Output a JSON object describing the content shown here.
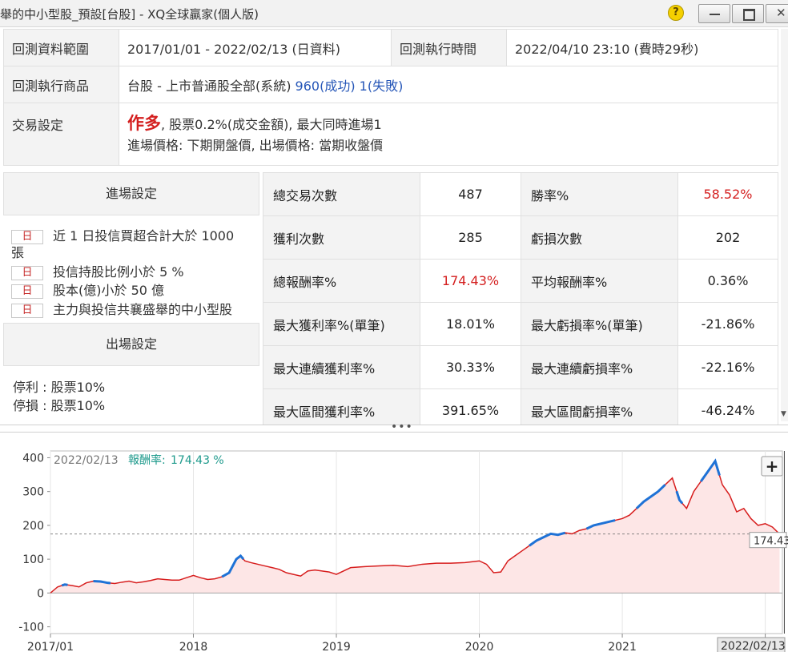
{
  "window": {
    "title": "舉的中小型股_預設[台股] - XQ全球贏家(個人版)"
  },
  "info": {
    "range_label": "回測資料範圍",
    "range_value": "2017/01/01 - 2022/02/13 (日資料)",
    "exec_time_label": "回測執行時間",
    "exec_time_value": "2022/04/10 23:10 (費時29秒)",
    "product_label": "回測執行商品",
    "product_value": "台股 - 上市普通股全部(系統)",
    "product_success": "960(成功)",
    "product_fail": "1(失敗)",
    "trade_label": "交易設定",
    "trade_direction": "作多",
    "trade_detail": ", 股票0.2%(成交金額), 最大同時進場1",
    "trade_price": "進場價格: 下期開盤價, 出場價格: 當期收盤價"
  },
  "entry": {
    "header": "進場設定",
    "conditions": [
      {
        "badge": "日",
        "text": "近 1 日投信買超合計大於 1000"
      },
      {
        "badge": "",
        "text": "張"
      },
      {
        "badge": "日",
        "text": "投信持股比例小於 5 %"
      },
      {
        "badge": "日",
        "text": "股本(億)小於 50 億"
      },
      {
        "badge": "日",
        "text": "主力與投信共襄盛舉的中小型股"
      }
    ]
  },
  "exit": {
    "header": "出場設定",
    "items": [
      "停利 : 股票10%",
      "停損 : 股票10%"
    ]
  },
  "stats": [
    {
      "l1": "總交易次數",
      "v1": "487",
      "l2": "勝率%",
      "v2": "58.52%",
      "v2_color": "#d41f1f"
    },
    {
      "l1": "獲利次數",
      "v1": "285",
      "l2": "虧損次數",
      "v2": "202"
    },
    {
      "l1": "總報酬率%",
      "v1": "174.43%",
      "v1_color": "#d41f1f",
      "l2": "平均報酬率%",
      "v2": "0.36%"
    },
    {
      "l1": "最大獲利率%(單筆)",
      "v1": "18.01%",
      "l2": "最大虧損率%(單筆)",
      "v2": "-21.86%"
    },
    {
      "l1": "最大連續獲利率%",
      "v1": "30.33%",
      "l2": "最大連續虧損率%",
      "v2": "-22.16%"
    },
    {
      "l1": "最大區間獲利率%",
      "v1": "391.65%",
      "l2": "最大區間虧損率%",
      "v2": "-46.24%"
    }
  ],
  "chart_data": {
    "type": "line",
    "header_date": "2022/02/13",
    "header_label": "報酬率:",
    "header_value": "174.43 %",
    "current_value": 174.43,
    "current_value_label": "174.43",
    "cursor_date_label": "2022/02/13",
    "ylim": [
      -120,
      420
    ],
    "yticks": [
      400,
      300,
      200,
      100,
      0,
      -100
    ],
    "xticks": [
      {
        "label": "2017/01",
        "x": 2017.0
      },
      {
        "label": "2018",
        "x": 2018.0
      },
      {
        "label": "2019",
        "x": 2019.0
      },
      {
        "label": "2020",
        "x": 2020.0
      },
      {
        "label": "2021",
        "x": 2021.0
      },
      {
        "label": "2022",
        "x": 2022.0
      }
    ],
    "xlim": [
      2017.0,
      2022.12
    ],
    "colors": {
      "line": "#d71e1e",
      "highlight": "#1f72d6",
      "fill": "#fde6e6",
      "header_value": "#1e9a8c"
    },
    "series": {
      "x": [
        2017.0,
        2017.05,
        2017.1,
        2017.15,
        2017.2,
        2017.25,
        2017.3,
        2017.35,
        2017.4,
        2017.45,
        2017.5,
        2017.55,
        2017.6,
        2017.65,
        2017.7,
        2017.75,
        2017.8,
        2017.85,
        2017.9,
        2017.95,
        2018.0,
        2018.05,
        2018.1,
        2018.15,
        2018.2,
        2018.25,
        2018.3,
        2018.33,
        2018.36,
        2018.4,
        2018.45,
        2018.5,
        2018.55,
        2018.6,
        2018.65,
        2018.7,
        2018.75,
        2018.8,
        2018.85,
        2018.9,
        2018.95,
        2019.0,
        2019.1,
        2019.2,
        2019.3,
        2019.4,
        2019.5,
        2019.6,
        2019.7,
        2019.8,
        2019.9,
        2020.0,
        2020.05,
        2020.1,
        2020.15,
        2020.2,
        2020.25,
        2020.3,
        2020.35,
        2020.4,
        2020.45,
        2020.5,
        2020.55,
        2020.6,
        2020.65,
        2020.7,
        2020.75,
        2020.8,
        2020.85,
        2020.9,
        2020.95,
        2021.0,
        2021.05,
        2021.1,
        2021.15,
        2021.2,
        2021.25,
        2021.3,
        2021.35,
        2021.4,
        2021.45,
        2021.5,
        2021.55,
        2021.6,
        2021.65,
        2021.7,
        2021.75,
        2021.8,
        2021.85,
        2021.9,
        2021.95,
        2022.0,
        2022.05,
        2022.1
      ],
      "y": [
        0,
        18,
        25,
        22,
        18,
        30,
        35,
        34,
        30,
        28,
        32,
        35,
        30,
        33,
        37,
        42,
        40,
        38,
        38,
        45,
        52,
        45,
        40,
        42,
        48,
        60,
        100,
        110,
        95,
        90,
        85,
        80,
        75,
        70,
        60,
        55,
        50,
        65,
        68,
        65,
        62,
        55,
        75,
        78,
        80,
        82,
        78,
        85,
        88,
        88,
        90,
        95,
        85,
        60,
        62,
        95,
        110,
        125,
        140,
        155,
        165,
        175,
        172,
        178,
        175,
        185,
        190,
        200,
        205,
        210,
        215,
        220,
        230,
        250,
        270,
        285,
        300,
        320,
        340,
        275,
        250,
        300,
        330,
        360,
        390,
        320,
        290,
        240,
        250,
        220,
        200,
        205,
        195,
        174.43
      ],
      "highlight_ranges": [
        [
          2017.08,
          2017.12
        ],
        [
          2017.3,
          2017.42
        ],
        [
          2018.2,
          2018.35
        ],
        [
          2020.35,
          2020.6
        ],
        [
          2020.75,
          2020.95
        ],
        [
          2021.1,
          2021.3
        ],
        [
          2021.38,
          2021.42
        ],
        [
          2021.55,
          2021.68
        ]
      ]
    }
  }
}
